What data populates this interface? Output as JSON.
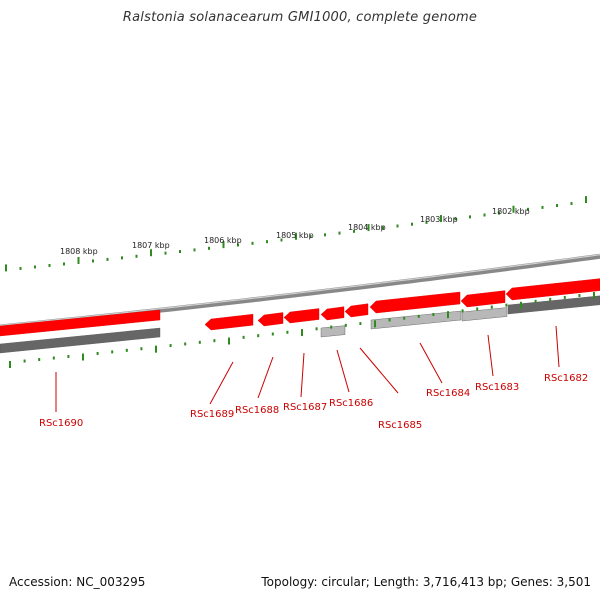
{
  "title": "Ralstonia solanacearum GMI1000, complete genome",
  "footer": {
    "accession": "Accession: NC_003295",
    "summary": "Topology: circular; Length: 3,716,413 bp; Genes: 3,501"
  },
  "colors": {
    "forward_gene": "#ff0000",
    "reverse_gene_dark": "#666666",
    "reverse_gene_light": "#b8b8b8",
    "backbone": "#888888",
    "tick": "#2e8b1e",
    "label": "#cc0000"
  },
  "scale_labels": [
    "1808 kbp",
    "1807 kbp",
    "1806 kbp",
    "1805 kbp",
    "1804 kbp",
    "1803 kbp",
    "1802 kbp"
  ],
  "genes": [
    {
      "name": "RSc1690",
      "strand": "forward",
      "shade": "red"
    },
    {
      "name": "RSc1690",
      "strand": "reverse",
      "shade": "dark"
    },
    {
      "name": "RSc1689",
      "strand": "forward",
      "shade": "red"
    },
    {
      "name": "RSc1688",
      "strand": "forward",
      "shade": "red"
    },
    {
      "name": "RSc1687",
      "strand": "forward",
      "shade": "red"
    },
    {
      "name": "RSc1686",
      "strand": "forward",
      "shade": "red"
    },
    {
      "name": "RSc1686",
      "strand": "reverse",
      "shade": "light"
    },
    {
      "name": "RSc1685",
      "strand": "forward",
      "shade": "red"
    },
    {
      "name": "RSc1684",
      "strand": "forward",
      "shade": "red"
    },
    {
      "name": "RSc1684",
      "strand": "reverse",
      "shade": "light"
    },
    {
      "name": "RSc1683",
      "strand": "forward",
      "shade": "red"
    },
    {
      "name": "RSc1683",
      "strand": "reverse",
      "shade": "light"
    },
    {
      "name": "RSc1682",
      "strand": "forward",
      "shade": "red"
    },
    {
      "name": "RSc1682",
      "strand": "reverse",
      "shade": "dark"
    }
  ],
  "gene_labels": [
    "RSc1690",
    "RSc1689",
    "RSc1688",
    "RSc1687",
    "RSc1686",
    "RSc1685",
    "RSc1684",
    "RSc1683",
    "RSc1682"
  ]
}
